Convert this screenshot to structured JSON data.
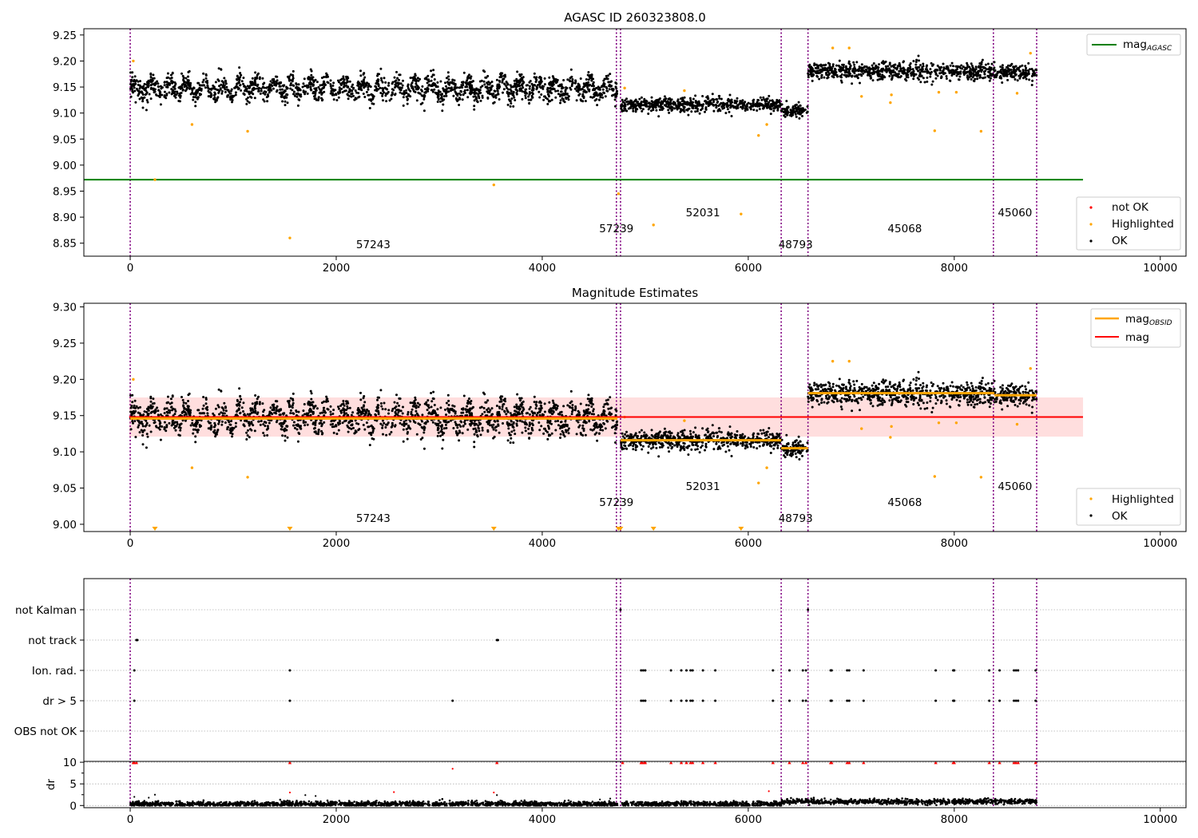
{
  "chart_data": [
    {
      "type": "scatter",
      "title": "AGASC ID 260323808.0",
      "xlim": [
        -450,
        10250
      ],
      "ylim": [
        8.825,
        9.262
      ],
      "x_ticks": [
        0,
        2000,
        4000,
        6000,
        8000,
        10000
      ],
      "y_ticks": [
        8.85,
        8.9,
        8.95,
        9.0,
        9.05,
        9.1,
        9.15,
        9.2,
        9.25
      ],
      "segments": [
        {
          "x0": 0,
          "x1": 4730,
          "mean": 9.147,
          "spread": 0.018,
          "oscillation": 0.012
        },
        {
          "x0": 4760,
          "x1": 6320,
          "mean": 9.116,
          "spread": 0.011,
          "oscillation": 0.0
        },
        {
          "x0": 6320,
          "x1": 6580,
          "mean": 9.105,
          "spread": 0.011,
          "oscillation": 0.0
        },
        {
          "x0": 6580,
          "x1": 8390,
          "mean": 9.18,
          "spread": 0.014,
          "oscillation": 0.0
        },
        {
          "x0": 8390,
          "x1": 8800,
          "mean": 9.178,
          "spread": 0.013,
          "oscillation": 0.0
        }
      ],
      "highlighted_points": [
        [
          30,
          9.2
        ],
        [
          240,
          8.972
        ],
        [
          600,
          9.078
        ],
        [
          1140,
          9.065
        ],
        [
          1550,
          8.86
        ],
        [
          3530,
          8.962
        ],
        [
          4740,
          8.945
        ],
        [
          4800,
          9.148
        ],
        [
          5080,
          8.885
        ],
        [
          5380,
          9.143
        ],
        [
          5930,
          8.906
        ],
        [
          6100,
          9.057
        ],
        [
          6180,
          9.078
        ],
        [
          6820,
          9.225
        ],
        [
          6980,
          9.225
        ],
        [
          7100,
          9.132
        ],
        [
          7380,
          9.12
        ],
        [
          7390,
          9.135
        ],
        [
          7810,
          9.066
        ],
        [
          7850,
          9.14
        ],
        [
          8020,
          9.14
        ],
        [
          8260,
          9.065
        ],
        [
          8610,
          9.138
        ],
        [
          8740,
          9.215
        ]
      ],
      "reference_lines": [
        {
          "name": "mag$_{AGASC}$",
          "y": 8.972,
          "x0": -450,
          "x1": 9250,
          "color": "#008000"
        }
      ],
      "obsid_boundaries": [
        0,
        4720,
        4760,
        6320,
        6580,
        8380,
        8800
      ],
      "obsid_labels": [
        {
          "text": "57243",
          "x": 2360,
          "y": 8.84
        },
        {
          "text": "57239",
          "x": 4720,
          "y": 8.871
        },
        {
          "text": "52031",
          "x": 5560,
          "y": 8.902
        },
        {
          "text": "48793",
          "x": 6460,
          "y": 8.84
        },
        {
          "text": "45068",
          "x": 7520,
          "y": 8.871
        },
        {
          "text": "45060",
          "x": 8590,
          "y": 8.902
        }
      ],
      "legend_lines": [
        {
          "name": "mag",
          "subscript": "AGASC",
          "color": "#008000"
        }
      ],
      "legend_points": [
        {
          "name": "not OK",
          "color": "#ff0000"
        },
        {
          "name": "Highlighted",
          "color": "#ffa500"
        },
        {
          "name": "OK",
          "color": "#000000"
        }
      ],
      "legend_placement": [
        "top-right",
        "bottom-right"
      ]
    },
    {
      "type": "scatter",
      "title": "Magnitude Estimates",
      "xlim": [
        -450,
        10250
      ],
      "ylim": [
        8.99,
        9.305
      ],
      "x_ticks": [
        0,
        2000,
        4000,
        6000,
        8000,
        10000
      ],
      "y_ticks": [
        9.0,
        9.05,
        9.1,
        9.15,
        9.2,
        9.25,
        9.3
      ],
      "mag": 9.148,
      "mag_band": [
        9.121,
        9.175
      ],
      "mag_line_x": [
        -10,
        9250
      ],
      "obsid_means": [
        {
          "x0": 0,
          "x1": 4730,
          "y": 9.146
        },
        {
          "x0": 4760,
          "x1": 6320,
          "y": 9.116
        },
        {
          "x0": 6320,
          "x1": 6580,
          "y": 9.105
        },
        {
          "x0": 6580,
          "x1": 8390,
          "y": 9.181
        },
        {
          "x0": 8390,
          "x1": 8800,
          "y": 9.178
        }
      ],
      "below_axis_markers_x": [
        240,
        1550,
        3530,
        4740,
        4760,
        5080,
        5930
      ],
      "obsid_boundaries": [
        0,
        4720,
        4760,
        6320,
        6580,
        8380,
        8800
      ],
      "obsid_labels": [
        {
          "text": "57243",
          "x": 2360,
          "y": 9.003
        },
        {
          "text": "57239",
          "x": 4720,
          "y": 9.025
        },
        {
          "text": "52031",
          "x": 5560,
          "y": 9.047
        },
        {
          "text": "48793",
          "x": 6460,
          "y": 9.003
        },
        {
          "text": "45068",
          "x": 7520,
          "y": 9.025
        },
        {
          "text": "45060",
          "x": 8590,
          "y": 9.047
        }
      ],
      "legend_lines": [
        {
          "name": "mag",
          "subscript": "OBSID",
          "color": "#ffa500"
        },
        {
          "name": "mag",
          "subscript": "",
          "color": "#ff0000"
        }
      ],
      "legend_points": [
        {
          "name": "Highlighted",
          "color": "#ffa500"
        },
        {
          "name": "OK",
          "color": "#000000"
        }
      ],
      "legend_placement": [
        "top-right",
        "bottom-right"
      ]
    },
    {
      "type": "scatter",
      "title": "",
      "xlim": [
        -450,
        10250
      ],
      "x_ticks": [
        0,
        2000,
        4000,
        6000,
        8000,
        10000
      ],
      "flag_categories": [
        "not Kalman",
        "not track",
        "Ion. rad.",
        "dr > 5",
        "OBS not OK"
      ],
      "flag_points": {
        "not Kalman": [
          4760,
          6580
        ],
        "not track": [
          60,
          70,
          3560,
          3570
        ],
        "Ion. rad.": [
          40,
          1550,
          4960,
          4980,
          5000,
          5250,
          5350,
          5400,
          5440,
          5460,
          5560,
          5680,
          6240,
          6400,
          6530,
          6560,
          6800,
          6810,
          6960,
          6980,
          7120,
          7820,
          7990,
          8000,
          8340,
          8440,
          8580,
          8600,
          8620,
          8790
        ],
        "dr > 5": [
          40,
          1550,
          3130,
          4960,
          4980,
          5000,
          5250,
          5350,
          5400,
          5440,
          5460,
          5560,
          5680,
          6240,
          6400,
          6530,
          6560,
          6800,
          6810,
          6960,
          6980,
          7120,
          7820,
          7990,
          8000,
          8340,
          8440,
          8580,
          8600,
          8620,
          8790
        ],
        "OBS not OK": []
      },
      "dr_ylabel": "dr",
      "dr_ylim": [
        -0.5,
        10.2
      ],
      "dr_ticks": [
        0,
        5,
        10
      ],
      "dr_clipped_x": [
        30,
        40,
        60,
        1550,
        3560,
        4780,
        4960,
        4970,
        4990,
        5000,
        5250,
        5350,
        5400,
        5440,
        5460,
        5560,
        5680,
        6240,
        6400,
        6530,
        6560,
        6800,
        6810,
        6960,
        6980,
        7120,
        7820,
        7990,
        8000,
        8340,
        8440,
        8580,
        8600,
        8620,
        8790
      ],
      "dr_outliers": [
        [
          40,
          2.0
        ],
        [
          180,
          1.8
        ],
        [
          240,
          2.5
        ],
        [
          1550,
          3.0
        ],
        [
          1700,
          2.4
        ],
        [
          1800,
          2.2
        ],
        [
          2560,
          3.1
        ],
        [
          3130,
          8.5
        ],
        [
          3530,
          3.0
        ],
        [
          3560,
          2.4
        ],
        [
          4560,
          1.4
        ],
        [
          4660,
          1.6
        ],
        [
          6200,
          3.3
        ]
      ],
      "obsid_boundaries": [
        0,
        4720,
        4760,
        6320,
        6580,
        8380,
        8800
      ]
    }
  ]
}
